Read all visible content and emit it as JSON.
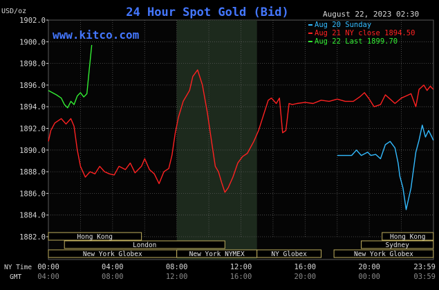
{
  "chart_data": {
    "type": "line",
    "title": "24 Hour Spot Gold (Bid)",
    "site": "www.kitco.com",
    "unit_label": "USD/oz",
    "timestamp": "August 22, 2023 02:30",
    "ylim": [
      1882.0,
      1902.0
    ],
    "y_ticks": [
      "1902.0",
      "1900.0",
      "1898.0",
      "1896.0",
      "1894.0",
      "1892.0",
      "1890.0",
      "1888.0",
      "1886.0",
      "1884.0",
      "1882.0"
    ],
    "x_row_labels": {
      "ny_time": "NY Time",
      "gmt": "GMT"
    },
    "x_ticks_ny": [
      "00:00",
      "04:00",
      "08:00",
      "12:00",
      "16:00",
      "20:00",
      "23:59"
    ],
    "x_ticks_gmt": [
      "04:00",
      "08:00",
      "12:00",
      "16:00",
      "20:00",
      "00:00",
      "03:59"
    ],
    "grid": true,
    "legend_position": "top-right",
    "series": [
      {
        "name": "Aug 20 Sunday",
        "color": "#33bbff",
        "x": [
          18.0,
          18.5,
          18.9,
          19.2,
          19.5,
          19.9,
          20.1,
          20.4,
          20.7,
          21.0,
          21.3,
          21.6,
          21.8,
          21.9,
          22.1,
          22.3,
          22.6,
          22.9,
          23.1,
          23.3,
          23.5,
          23.7,
          23.9,
          23.99
        ],
        "y": [
          1889.5,
          1889.5,
          1889.5,
          1890.0,
          1889.5,
          1889.8,
          1889.5,
          1889.6,
          1889.2,
          1890.5,
          1890.8,
          1890.2,
          1888.8,
          1887.6,
          1886.5,
          1884.5,
          1886.5,
          1889.8,
          1890.9,
          1892.3,
          1891.2,
          1891.8,
          1891.2,
          1890.9
        ]
      },
      {
        "name": "Aug 21 NY close 1894.50",
        "color": "#ff2222",
        "x": [
          0.0,
          0.15,
          0.4,
          0.8,
          1.1,
          1.4,
          1.6,
          1.8,
          2.0,
          2.3,
          2.6,
          2.9,
          3.2,
          3.5,
          3.8,
          4.1,
          4.4,
          4.8,
          5.1,
          5.4,
          5.8,
          6.0,
          6.3,
          6.6,
          6.9,
          7.2,
          7.5,
          7.7,
          7.9,
          8.1,
          8.4,
          8.8,
          9.0,
          9.3,
          9.6,
          9.9,
          10.2,
          10.4,
          10.6,
          10.8,
          11.0,
          11.2,
          11.5,
          11.8,
          12.1,
          12.4,
          12.8,
          13.1,
          13.4,
          13.7,
          13.9,
          14.2,
          14.4,
          14.6,
          14.8,
          15.0,
          15.2,
          15.5,
          16.0,
          16.5,
          17.0,
          17.5,
          18.0,
          18.5,
          19.0,
          19.4,
          19.7,
          20.0,
          20.3,
          20.7,
          21.0,
          21.3,
          21.6,
          22.0,
          22.3,
          22.6,
          22.9,
          23.1,
          23.4,
          23.6,
          23.8,
          23.99
        ],
        "y": [
          1890.8,
          1891.8,
          1892.5,
          1892.9,
          1892.4,
          1892.9,
          1892.2,
          1890.0,
          1888.5,
          1887.5,
          1888.0,
          1887.8,
          1888.5,
          1888.0,
          1887.8,
          1887.7,
          1888.5,
          1888.2,
          1888.8,
          1887.9,
          1888.5,
          1889.2,
          1888.2,
          1887.8,
          1886.9,
          1888.0,
          1888.3,
          1889.5,
          1891.5,
          1893.0,
          1894.5,
          1895.5,
          1896.8,
          1897.4,
          1896.0,
          1893.5,
          1890.5,
          1888.5,
          1888.0,
          1887.0,
          1886.1,
          1886.5,
          1887.5,
          1888.8,
          1889.4,
          1889.7,
          1890.8,
          1891.8,
          1893.2,
          1894.6,
          1894.8,
          1894.3,
          1894.8,
          1891.6,
          1891.8,
          1894.3,
          1894.2,
          1894.3,
          1894.4,
          1894.3,
          1894.6,
          1894.5,
          1894.7,
          1894.5,
          1894.5,
          1894.9,
          1895.3,
          1894.7,
          1894.0,
          1894.2,
          1895.1,
          1894.7,
          1894.3,
          1894.8,
          1895.0,
          1895.2,
          1894.0,
          1895.6,
          1896.0,
          1895.5,
          1895.9,
          1895.6
        ]
      },
      {
        "name": "Aug 22 Last 1899.70",
        "color": "#33ee33",
        "x": [
          0.0,
          0.25,
          0.5,
          0.8,
          1.0,
          1.2,
          1.4,
          1.6,
          1.8,
          2.0,
          2.2,
          2.4,
          2.55,
          2.7
        ],
        "y": [
          1895.5,
          1895.3,
          1895.1,
          1894.8,
          1894.2,
          1893.9,
          1894.5,
          1894.2,
          1895.0,
          1895.3,
          1894.9,
          1895.2,
          1897.5,
          1899.7
        ]
      }
    ],
    "shaded_regions": [
      {
        "x": [
          8.0,
          13.0
        ]
      }
    ],
    "sessions": [
      {
        "label": "Hong Kong",
        "x": [
          0.0,
          5.8
        ],
        "row": 0
      },
      {
        "label": "Hong Kong",
        "x": [
          20.8,
          23.99
        ],
        "row": 0
      },
      {
        "label": "London",
        "x": [
          1.0,
          11.0
        ],
        "row": 1
      },
      {
        "label": "Sydney",
        "x": [
          19.5,
          23.99
        ],
        "row": 1
      },
      {
        "label": "New York Globex",
        "x": [
          0.0,
          8.0
        ],
        "row": 2
      },
      {
        "label": "New York NYMEX",
        "x": [
          8.0,
          13.0
        ],
        "row": 2
      },
      {
        "label": "NY Globex",
        "x": [
          13.0,
          17.0
        ],
        "row": 2
      },
      {
        "label": "New York Globex",
        "x": [
          17.8,
          23.99
        ],
        "row": 2
      }
    ]
  },
  "colors": {
    "background": "#000000",
    "plot_background": "#050505",
    "shade": "#1d2a1d",
    "grid": "#5a5a5a",
    "title": "#4477ff",
    "site": "#4477ff",
    "text": "#d8d8d8",
    "session_fill": "#000000",
    "session_border": "#bfae5e",
    "session_text": "#e8e8e8"
  }
}
